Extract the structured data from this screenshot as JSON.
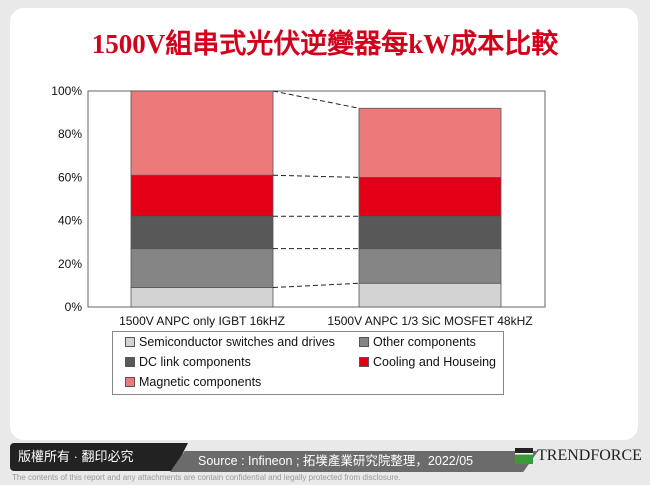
{
  "title": "1500V組串式光伏逆變器每kW成本比較",
  "chart_data": {
    "type": "bar",
    "stacked": true,
    "categories": [
      "1500V ANPC only IGBT 16kHZ",
      "1500V ANPC 1/3 SiC MOSFET 48kHZ"
    ],
    "series": [
      {
        "name": "Semiconductor switches and drives",
        "values": [
          9,
          11
        ],
        "color": "#d3d3d3"
      },
      {
        "name": "Other components",
        "values": [
          18,
          16
        ],
        "color": "#858585"
      },
      {
        "name": "DC link components",
        "values": [
          15,
          15
        ],
        "color": "#585858"
      },
      {
        "name": "Cooling and Houseing",
        "values": [
          19,
          18
        ],
        "color": "#e30016"
      },
      {
        "name": "Magnetic components",
        "values": [
          39,
          32
        ],
        "color": "#ec7a7a"
      }
    ],
    "yticks": [
      "0%",
      "20%",
      "40%",
      "60%",
      "80%",
      "100%"
    ],
    "ylim": [
      0,
      100
    ],
    "grid": false,
    "legend": "bottom"
  },
  "footer": {
    "copyright": "版權所有 · 翻印必究",
    "source": "Source : Infineon ; 拓墣產業研究院整理，2022/05",
    "brand": "TRENDFORCE",
    "disclaimer": "The contents of this report and any attachments are contain confidential and legally protected from disclosure."
  }
}
